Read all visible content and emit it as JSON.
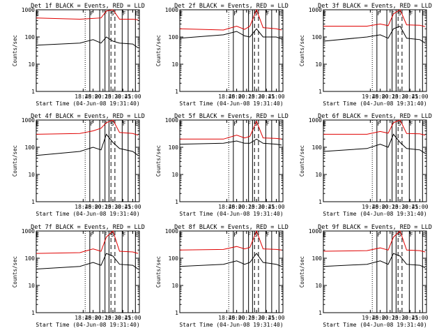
{
  "figure": {
    "background": "#ffffff"
  },
  "colors": {
    "events": "#000000",
    "lld": "#e00000",
    "axes": "#000000"
  },
  "chart_data": [
    {
      "type": "line",
      "title": "Det 1f BLACK = Events, RED = LLD",
      "xlabel": "Start Time (04-Jun-08 19:31:40)",
      "ylabel": "Counts/sec",
      "yscale": "log",
      "ylim": [
        1,
        1000
      ],
      "xlim": [
        "18:34",
        "21:10"
      ],
      "xticks": [
        "18:45",
        "20:00",
        "20:15",
        "20:30",
        "20:45",
        "21:00"
      ],
      "yticks": [
        "1",
        "10",
        "100",
        "1000"
      ],
      "flags": [
        "E",
        "F",
        "F",
        "S",
        "F",
        "E"
      ],
      "series": [
        {
          "name": "Events",
          "color": "#000000",
          "x": [
            "18:34",
            "19:40",
            "20:00",
            "20:12",
            "20:20",
            "20:30",
            "20:40",
            "21:00",
            "21:08"
          ],
          "values": [
            50,
            60,
            80,
            60,
            100,
            70,
            60,
            55,
            40
          ]
        },
        {
          "name": "LLD",
          "color": "#e00000",
          "x": [
            "18:34",
            "19:40",
            "20:00",
            "20:12",
            "20:20",
            "20:30",
            "20:40",
            "21:00",
            "21:08"
          ],
          "values": [
            500,
            450,
            480,
            500,
            900,
            1000,
            450,
            450,
            430
          ]
        }
      ]
    },
    {
      "type": "line",
      "title": "Det 2f BLACK = Events, RED = LLD",
      "xlabel": "Start Time (04-Jun-08 19:31:40)",
      "ylabel": "Counts/sec",
      "yscale": "log",
      "ylim": [
        1,
        1000
      ],
      "xlim": [
        "18:34",
        "21:10"
      ],
      "xticks": [
        "18:45",
        "20:00",
        "20:15",
        "20:30",
        "20:45",
        "21:00"
      ],
      "yticks": [
        "1",
        "10",
        "100",
        "1000"
      ],
      "flags": [
        "E",
        "F",
        "F",
        "S",
        "F",
        "E"
      ],
      "series": [
        {
          "name": "Events",
          "color": "#000000",
          "x": [
            "18:34",
            "19:40",
            "20:00",
            "20:12",
            "20:20",
            "20:30",
            "20:40",
            "21:00",
            "21:08"
          ],
          "values": [
            90,
            120,
            160,
            110,
            100,
            200,
            100,
            100,
            85
          ]
        },
        {
          "name": "LLD",
          "color": "#e00000",
          "x": [
            "18:34",
            "19:40",
            "20:00",
            "20:12",
            "20:20",
            "20:30",
            "20:40",
            "21:00",
            "21:08"
          ],
          "values": [
            200,
            180,
            250,
            190,
            250,
            1000,
            220,
            200,
            180
          ]
        }
      ]
    },
    {
      "type": "line",
      "title": "Det 3f BLACK = Events, RED = LLD",
      "xlabel": "Start Time (04-Jun-08 19:31:40)",
      "ylabel": "Counts/sec",
      "yscale": "log",
      "ylim": [
        1,
        1000
      ],
      "xlim": [
        "18:34",
        "21:10"
      ],
      "xticks": [
        "19:45",
        "20:00",
        "20:15",
        "20:30",
        "20:45",
        "21:00"
      ],
      "yticks": [
        "1",
        "10",
        "100",
        "1000"
      ],
      "flags": [
        "E",
        "F",
        "F",
        "S",
        "F",
        "E"
      ],
      "series": [
        {
          "name": "Events",
          "color": "#000000",
          "x": [
            "18:34",
            "19:40",
            "20:00",
            "20:12",
            "20:20",
            "20:30",
            "20:40",
            "21:00",
            "21:08"
          ],
          "values": [
            70,
            100,
            120,
            90,
            200,
            250,
            90,
            80,
            60
          ]
        },
        {
          "name": "LLD",
          "color": "#e00000",
          "x": [
            "18:34",
            "19:40",
            "20:00",
            "20:12",
            "20:20",
            "20:30",
            "20:40",
            "21:00",
            "21:08"
          ],
          "values": [
            250,
            250,
            300,
            260,
            700,
            1000,
            280,
            270,
            240
          ]
        }
      ]
    },
    {
      "type": "line",
      "title": "Det 4f BLACK = Events, RED = LLD",
      "xlabel": "Start Time (04-Jun-08 19:31:40)",
      "ylabel": "Counts/sec",
      "yscale": "log",
      "ylim": [
        1,
        1000
      ],
      "xlim": [
        "18:34",
        "21:10"
      ],
      "xticks": [
        "18:45",
        "20:00",
        "20:15",
        "20:30",
        "20:45",
        "21:00"
      ],
      "yticks": [
        "1",
        "10",
        "100",
        "1000"
      ],
      "flags": [
        "E",
        "F",
        "F",
        "S",
        "F",
        "E"
      ],
      "series": [
        {
          "name": "Events",
          "color": "#000000",
          "x": [
            "18:34",
            "19:40",
            "20:00",
            "20:12",
            "20:20",
            "20:30",
            "20:40",
            "21:00",
            "21:08"
          ],
          "values": [
            50,
            70,
            100,
            80,
            300,
            150,
            90,
            70,
            50
          ]
        },
        {
          "name": "LLD",
          "color": "#e00000",
          "x": [
            "18:34",
            "19:40",
            "20:00",
            "20:12",
            "20:20",
            "20:30",
            "20:40",
            "21:00",
            "21:08"
          ],
          "values": [
            300,
            320,
            400,
            500,
            800,
            1000,
            350,
            320,
            280
          ]
        }
      ]
    },
    {
      "type": "line",
      "title": "Det 5f BLACK = Events, RED = LLD",
      "xlabel": "Start Time (04-Jun-08 19:31:40)",
      "ylabel": "Counts/sec",
      "yscale": "log",
      "ylim": [
        1,
        1000
      ],
      "xlim": [
        "18:34",
        "21:10"
      ],
      "xticks": [
        "18:45",
        "20:00",
        "20:15",
        "20:30",
        "20:45",
        "21:00"
      ],
      "yticks": [
        "1",
        "10",
        "100",
        "1000"
      ],
      "flags": [
        "E",
        "F",
        "F",
        "S",
        "F",
        "E"
      ],
      "series": [
        {
          "name": "Events",
          "color": "#000000",
          "x": [
            "18:34",
            "19:40",
            "20:00",
            "20:12",
            "20:20",
            "20:30",
            "20:40",
            "21:00",
            "21:08"
          ],
          "values": [
            130,
            140,
            170,
            140,
            140,
            200,
            140,
            130,
            120
          ]
        },
        {
          "name": "LLD",
          "color": "#e00000",
          "x": [
            "18:34",
            "19:40",
            "20:00",
            "20:12",
            "20:20",
            "20:30",
            "20:40",
            "21:00",
            "21:08"
          ],
          "values": [
            200,
            200,
            280,
            220,
            250,
            900,
            220,
            210,
            200
          ]
        }
      ]
    },
    {
      "type": "line",
      "title": "Det 6f BLACK = Events, RED = LLD",
      "xlabel": "Start Time (04-Jun-08 19:31:40)",
      "ylabel": "Counts/sec",
      "yscale": "log",
      "ylim": [
        1,
        1000
      ],
      "xlim": [
        "18:34",
        "21:10"
      ],
      "xticks": [
        "19:45",
        "20:00",
        "20:15",
        "20:30",
        "20:45",
        "21:00"
      ],
      "yticks": [
        "1",
        "10",
        "100",
        "1000"
      ],
      "flags": [
        "E",
        "F",
        "F",
        "S",
        "F",
        "E"
      ],
      "series": [
        {
          "name": "Events",
          "color": "#000000",
          "x": [
            "18:34",
            "19:40",
            "20:00",
            "20:12",
            "20:20",
            "20:30",
            "20:40",
            "21:00",
            "21:08"
          ],
          "values": [
            70,
            90,
            130,
            100,
            300,
            150,
            90,
            80,
            60
          ]
        },
        {
          "name": "LLD",
          "color": "#e00000",
          "x": [
            "18:34",
            "19:40",
            "20:00",
            "20:12",
            "20:20",
            "20:30",
            "20:40",
            "21:00",
            "21:08"
          ],
          "values": [
            300,
            300,
            380,
            330,
            800,
            1000,
            320,
            310,
            280
          ]
        }
      ]
    },
    {
      "type": "line",
      "title": "Det 7f BLACK = Events, RED = LLD",
      "xlabel": "Start Time (04-Jun-08 19:31:40)",
      "ylabel": "Counts/sec",
      "yscale": "log",
      "ylim": [
        1,
        1000
      ],
      "xlim": [
        "18:34",
        "21:10"
      ],
      "xticks": [
        "18:45",
        "20:00",
        "20:15",
        "20:30",
        "20:45",
        "21:00"
      ],
      "yticks": [
        "1",
        "10",
        "100",
        "1000"
      ],
      "flags": [
        "E",
        "F",
        "F",
        "S",
        "F",
        "E"
      ],
      "series": [
        {
          "name": "Events",
          "color": "#000000",
          "x": [
            "18:34",
            "19:40",
            "20:00",
            "20:12",
            "20:20",
            "20:30",
            "20:40",
            "21:00",
            "21:08"
          ],
          "values": [
            40,
            50,
            70,
            55,
            150,
            120,
            60,
            55,
            40
          ]
        },
        {
          "name": "LLD",
          "color": "#e00000",
          "x": [
            "18:34",
            "19:40",
            "20:00",
            "20:12",
            "20:20",
            "20:30",
            "20:40",
            "21:00",
            "21:08"
          ],
          "values": [
            150,
            160,
            220,
            180,
            600,
            1000,
            180,
            170,
            150
          ]
        }
      ]
    },
    {
      "type": "line",
      "title": "Det 8f BLACK = Events, RED = LLD",
      "xlabel": "Start Time (04-Jun-08 19:31:40)",
      "ylabel": "Counts/sec",
      "yscale": "log",
      "ylim": [
        1,
        1000
      ],
      "xlim": [
        "18:34",
        "21:10"
      ],
      "xticks": [
        "18:45",
        "20:00",
        "20:15",
        "20:30",
        "20:45",
        "21:00"
      ],
      "yticks": [
        "1",
        "10",
        "100",
        "1000"
      ],
      "flags": [
        "E",
        "F",
        "F",
        "S",
        "F",
        "E"
      ],
      "series": [
        {
          "name": "Events",
          "color": "#000000",
          "x": [
            "18:34",
            "19:40",
            "20:00",
            "20:12",
            "20:20",
            "20:30",
            "20:40",
            "21:00",
            "21:08"
          ],
          "values": [
            50,
            60,
            80,
            60,
            70,
            150,
            70,
            60,
            50
          ]
        },
        {
          "name": "LLD",
          "color": "#e00000",
          "x": [
            "18:34",
            "19:40",
            "20:00",
            "20:12",
            "20:20",
            "20:30",
            "20:40",
            "21:00",
            "21:08"
          ],
          "values": [
            200,
            210,
            270,
            220,
            250,
            1000,
            220,
            210,
            200
          ]
        }
      ]
    },
    {
      "type": "line",
      "title": "Det 9f BLACK = Events, RED = LLD",
      "xlabel": "Start Time (04-Jun-08 19:31:40)",
      "ylabel": "Counts/sec",
      "yscale": "log",
      "ylim": [
        1,
        1000
      ],
      "xlim": [
        "18:34",
        "21:10"
      ],
      "xticks": [
        "19:45",
        "20:00",
        "20:15",
        "20:30",
        "20:45",
        "21:00"
      ],
      "yticks": [
        "1",
        "10",
        "100",
        "1000"
      ],
      "flags": [
        "E",
        "F",
        "F",
        "S",
        "F",
        "E"
      ],
      "series": [
        {
          "name": "Events",
          "color": "#000000",
          "x": [
            "18:34",
            "19:40",
            "20:00",
            "20:12",
            "20:20",
            "20:30",
            "20:40",
            "21:00",
            "21:08"
          ],
          "values": [
            50,
            60,
            80,
            60,
            150,
            120,
            60,
            55,
            45
          ]
        },
        {
          "name": "LLD",
          "color": "#e00000",
          "x": [
            "18:34",
            "19:40",
            "20:00",
            "20:12",
            "20:20",
            "20:30",
            "20:40",
            "21:00",
            "21:08"
          ],
          "values": [
            180,
            190,
            240,
            200,
            600,
            1000,
            200,
            190,
            170
          ]
        }
      ]
    }
  ]
}
